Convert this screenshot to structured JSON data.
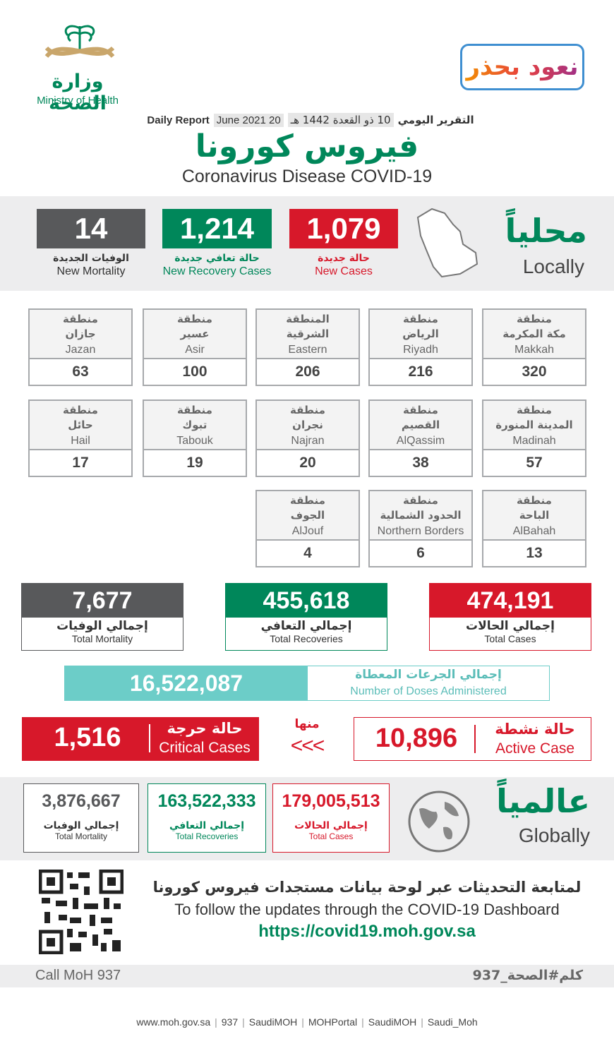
{
  "header": {
    "ministry_ar": "وزارة الصحة",
    "ministry_en": "Ministry of Health",
    "campaign": "نعود بحذر",
    "report_ar": "التقرير اليومي",
    "hijri_date": "10 ذو القعدة 1442 هـ",
    "date": "20 June 2021",
    "report_en": "Daily Report",
    "title_ar": "فيروس كورونا",
    "title_en": "Coronavirus Disease COVID-19"
  },
  "locally": {
    "label_ar": "محلياً",
    "label_en": "Locally",
    "new_cases": {
      "value": "1,079",
      "label_ar": "حالة جديدة",
      "label_en": "New Cases"
    },
    "new_recoveries": {
      "value": "1,214",
      "label_ar": "حالة تعافي جديدة",
      "label_en": "New Recovery Cases"
    },
    "new_mortality": {
      "value": "14",
      "label_ar": "الوفيات الجديدة",
      "label_en": "New Mortality"
    }
  },
  "regions": [
    {
      "prefix": "منطقة",
      "name_ar": "مكة المكرمة",
      "name_en": "Makkah",
      "value": 320
    },
    {
      "prefix": "منطقة",
      "name_ar": "الرياض",
      "name_en": "Riyadh",
      "value": 216
    },
    {
      "prefix": "المنطقة",
      "name_ar": "الشرقية",
      "name_en": "Eastern",
      "value": 206
    },
    {
      "prefix": "منطقة",
      "name_ar": "عسير",
      "name_en": "Asir",
      "value": 100
    },
    {
      "prefix": "منطقة",
      "name_ar": "جازان",
      "name_en": "Jazan",
      "value": 63
    },
    {
      "prefix": "منطقة",
      "name_ar": "المدينة المنورة",
      "name_en": "Madinah",
      "value": 57
    },
    {
      "prefix": "منطقة",
      "name_ar": "القصيم",
      "name_en": "AlQassim",
      "value": 38
    },
    {
      "prefix": "منطقة",
      "name_ar": "نجران",
      "name_en": "Najran",
      "value": 20
    },
    {
      "prefix": "منطقة",
      "name_ar": "تبوك",
      "name_en": "Tabouk",
      "value": 19
    },
    {
      "prefix": "منطقة",
      "name_ar": "حائل",
      "name_en": "Hail",
      "value": 17
    },
    {
      "prefix": "منطقة",
      "name_ar": "الباحة",
      "name_en": "AlBahah",
      "value": 13
    },
    {
      "prefix": "منطقة",
      "name_ar": "الحدود الشمالية",
      "name_en": "Northern Borders",
      "value": 6
    },
    {
      "prefix": "منطقة",
      "name_ar": "الجوف",
      "name_en": "AlJouf",
      "value": 4
    }
  ],
  "totals": {
    "cases": {
      "value": "474,191",
      "label_ar": "إجمالي الحالات",
      "label_en": "Total Cases"
    },
    "recoveries": {
      "value": "455,618",
      "label_ar": "إجمالي التعافي",
      "label_en": "Total Recoveries"
    },
    "mortality": {
      "value": "7,677",
      "label_ar": "إجمالي الوفيات",
      "label_en": "Total Mortality"
    }
  },
  "doses": {
    "value": "16,522,087",
    "label_ar": "إجمالي الجرعات المعطاة",
    "label_en": "Number of Doses Administered"
  },
  "active": {
    "value": "10,896",
    "label_ar": "حالة نشطة",
    "label_en": "Active Case"
  },
  "of_which": "منها",
  "arrows": "<<<",
  "critical": {
    "value": "1,516",
    "label_ar": "حالة حرجة",
    "label_en": "Critical Cases"
  },
  "globally": {
    "label_ar": "عالمياً",
    "label_en": "Globally",
    "cases": {
      "value": "179,005,513",
      "label_ar": "إجمالي الحالات",
      "label_en": "Total Cases"
    },
    "recoveries": {
      "value": "163,522,333",
      "label_ar": "إجمالي التعافي",
      "label_en": "Total Recoveries"
    },
    "mortality": {
      "value": "3,876,667",
      "label_ar": "إجمالي الوفيات",
      "label_en": "Total Mortality"
    }
  },
  "footer": {
    "follow_ar": "لمتابعة التحديثات عبر لوحة بيانات مستجدات فيروس كورونا",
    "follow_en": "To follow the updates through the COVID-19 Dashboard",
    "url": "https://covid19.moh.gov.sa",
    "call": "Call MoH 937",
    "hashtag": "كلم#الصحة_937",
    "social": [
      "www.moh.gov.sa",
      "937",
      "SaudiMOH",
      "MOHPortal",
      "SaudiMOH",
      "Saudi_Moh"
    ]
  }
}
